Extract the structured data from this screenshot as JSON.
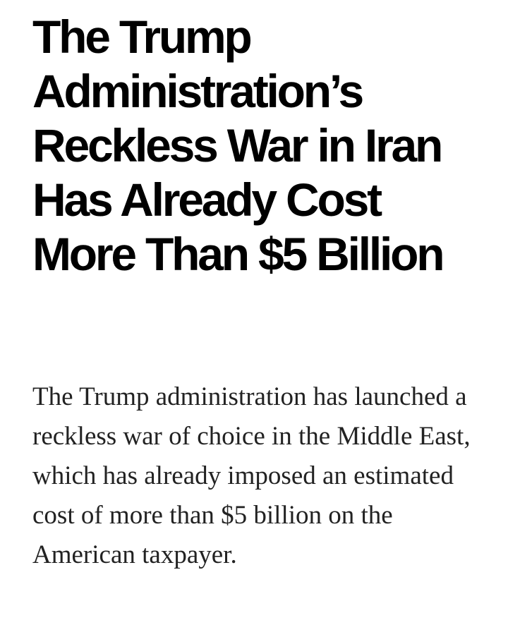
{
  "article": {
    "headline": "The Trump Administration’s Reckless War in Iran Has Already Cost More Than $5 Billion",
    "lede": "The Trump administration has launched a reckless war of choice in the Middle East, which has already imposed an estimated cost of more than $5 billion on the American taxpayer."
  },
  "colors": {
    "headline": "#000000",
    "body_text": "#222222",
    "background": "#ffffff"
  }
}
